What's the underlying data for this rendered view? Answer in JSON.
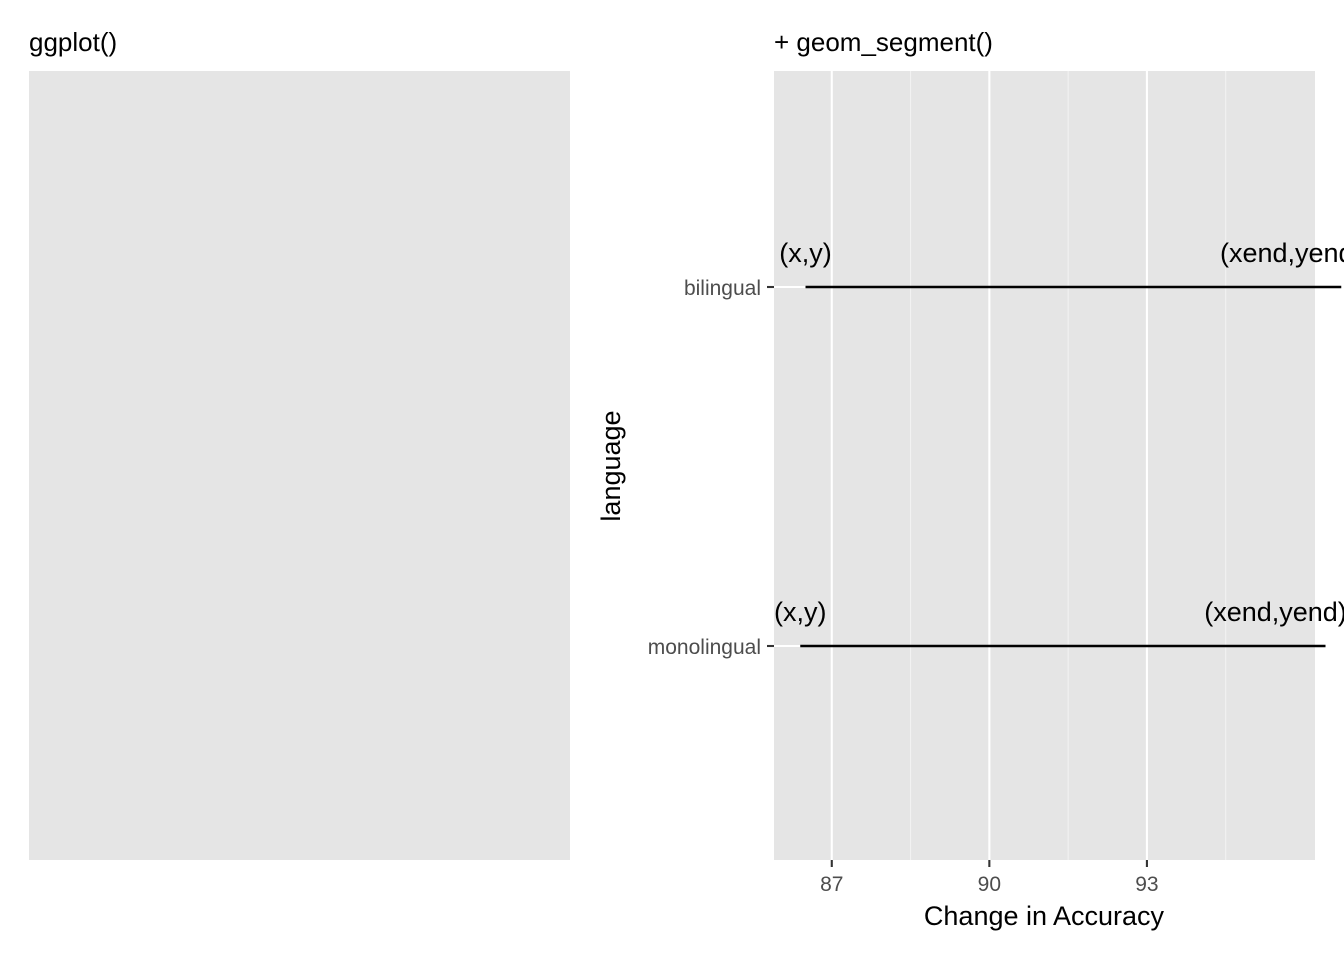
{
  "chart_data": [
    {
      "type": "blank",
      "title": "ggplot()"
    },
    {
      "type": "segment",
      "title": "+ geom_segment()",
      "xlabel": "Change in Accuracy",
      "ylabel": "language",
      "xlim": [
        85.9,
        96.2
      ],
      "x_ticks": [
        87,
        90,
        93
      ],
      "x_tick_labels": [
        "87",
        "90",
        "93"
      ],
      "categories": [
        "bilingual",
        "monolingual"
      ],
      "segments": [
        {
          "category": "bilingual",
          "x": 86.5,
          "xend": 96.7,
          "start_label": "(x,y)",
          "end_label": "(xend,yend)"
        },
        {
          "category": "monolingual",
          "x": 86.4,
          "xend": 96.4,
          "start_label": "(x,y)",
          "end_label": "(xend,yend)"
        }
      ],
      "grid": true,
      "colors": {
        "panel_background": "#e5e5e5",
        "grid_major": "#ffffff",
        "grid_minor": "#f2f2f2",
        "segment": "#000000",
        "tick_label": "#4d4d4d"
      }
    }
  ]
}
